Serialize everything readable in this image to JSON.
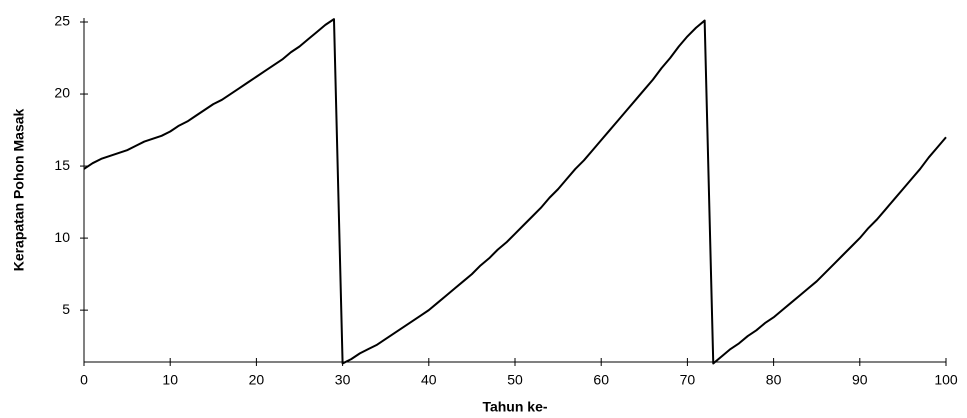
{
  "chart_data": {
    "type": "line",
    "xlabel": "Tahun ke-",
    "ylabel": "Kerapatan Pohon Masak",
    "x": [
      0,
      1,
      2,
      3,
      4,
      5,
      6,
      7,
      8,
      9,
      10,
      11,
      12,
      13,
      14,
      15,
      16,
      17,
      18,
      19,
      20,
      21,
      22,
      23,
      24,
      25,
      26,
      27,
      28,
      29,
      30,
      31,
      32,
      33,
      34,
      35,
      36,
      37,
      38,
      39,
      40,
      41,
      42,
      43,
      44,
      45,
      46,
      47,
      48,
      49,
      50,
      51,
      52,
      53,
      54,
      55,
      56,
      57,
      58,
      59,
      60,
      61,
      62,
      63,
      64,
      65,
      66,
      67,
      68,
      69,
      70,
      71,
      72,
      73,
      74,
      75,
      76,
      77,
      78,
      79,
      80,
      81,
      82,
      83,
      84,
      85,
      86,
      87,
      88,
      89,
      90,
      91,
      92,
      93,
      94,
      95,
      96,
      97,
      98,
      99,
      100
    ],
    "series": [
      {
        "color": "#000000",
        "values": [
          14.8,
          15.2,
          15.5,
          15.7,
          15.9,
          16.1,
          16.4,
          16.7,
          16.9,
          17.1,
          17.4,
          17.8,
          18.1,
          18.5,
          18.9,
          19.3,
          19.6,
          20.0,
          20.4,
          20.8,
          21.2,
          21.6,
          22.0,
          22.4,
          22.9,
          23.3,
          23.8,
          24.3,
          24.8,
          25.2,
          1.3,
          1.6,
          2.0,
          2.3,
          2.6,
          3.0,
          3.4,
          3.8,
          4.2,
          4.6,
          5.0,
          5.5,
          6.0,
          6.5,
          7.0,
          7.5,
          8.1,
          8.6,
          9.2,
          9.7,
          10.3,
          10.9,
          11.5,
          12.1,
          12.8,
          13.4,
          14.1,
          14.8,
          15.4,
          16.1,
          16.8,
          17.5,
          18.2,
          18.9,
          19.6,
          20.3,
          21.0,
          21.8,
          22.5,
          23.3,
          24.0,
          24.6,
          25.1,
          1.3,
          1.8,
          2.3,
          2.7,
          3.2,
          3.6,
          4.1,
          4.5,
          5.0,
          5.5,
          6.0,
          6.5,
          7.0,
          7.6,
          8.2,
          8.8,
          9.4,
          10.0,
          10.7,
          11.3,
          12.0,
          12.7,
          13.4,
          14.1,
          14.8,
          15.6,
          16.3,
          17.0
        ]
      }
    ],
    "xlim": [
      0,
      100
    ],
    "xticks": [
      0,
      10,
      20,
      30,
      40,
      50,
      60,
      70,
      80,
      90,
      100
    ],
    "ylim": [
      1.4,
      25
    ],
    "yticks": [
      5,
      10,
      15,
      20,
      25
    ],
    "grid": false
  }
}
